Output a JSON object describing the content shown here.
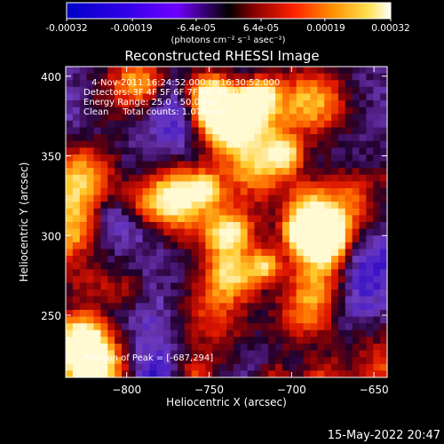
{
  "colorbar": {
    "tick_labels": [
      "-0.00032",
      "-0.00019",
      "-6.4e-05",
      "6.4e-05",
      "0.00019",
      "0.00032"
    ],
    "tick_values": [
      -0.00032,
      -0.00019,
      -6.4e-05,
      6.4e-05,
      0.00019,
      0.00032
    ],
    "range": [
      -0.00032,
      0.00032
    ],
    "units_label": "(photons cm⁻² s⁻¹ asec⁻²)",
    "colors": [
      "#0000c8",
      "#2a00e0",
      "#7a00ff",
      "#000000",
      "#8b0000",
      "#ff2a00",
      "#ff8c00",
      "#ffe040",
      "#ffffff"
    ]
  },
  "chart_data": {
    "type": "heatmap",
    "title": "Reconstructed RHESSI Image",
    "xlabel": "Heliocentric X (arcsec)",
    "ylabel": "Heliocentric Y (arcsec)",
    "xlim": [
      -837,
      -642
    ],
    "ylim": [
      211,
      406
    ],
    "x_ticks": [
      -800,
      -750,
      -700,
      -650
    ],
    "y_ticks": [
      250,
      300,
      350,
      400
    ],
    "x_tick_labels": [
      "−800",
      "−750",
      "−700",
      "−650"
    ],
    "y_tick_labels": [
      "250",
      "300",
      "350",
      "400"
    ],
    "annotations": [
      "4-Nov-2011 16:24:52.000 to 16:30:52.000",
      "Detectors: 3F 4F 5F 6F 7F 8F, Att 0",
      "Energy Range: 25.0 - 50.0 keV",
      "Clean     Total counts: 1.07E+04"
    ],
    "peak_label": "Position of Peak = [-687,294]",
    "peak": [
      -687,
      294
    ]
  },
  "timestamp": "15-May-2022 20:47"
}
